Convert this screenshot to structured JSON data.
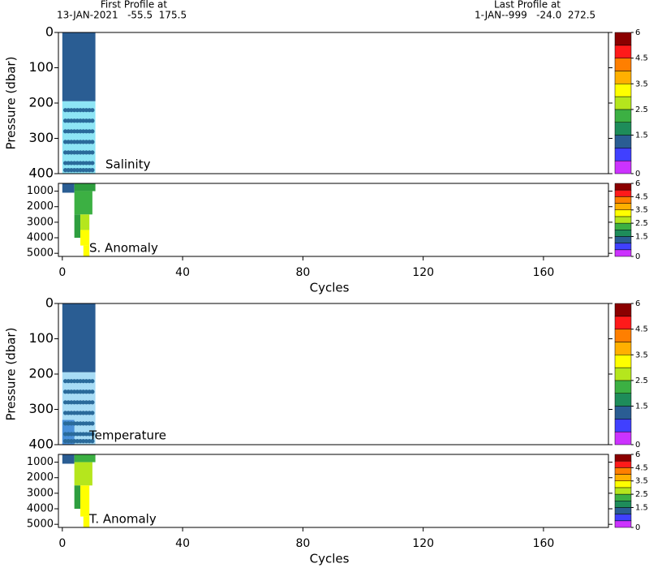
{
  "header": {
    "first_label": "First Profile at",
    "first_values": "13-JAN-2021   -55.5  175.5",
    "last_label": "Last Profile at",
    "last_values": "1-JAN--999   -24.0  272.5"
  },
  "chart_data": [
    {
      "type": "heatmap",
      "ylabel": "Pressure (dbar)",
      "label": "Salinity",
      "xlim": [
        -1.3,
        181.6
      ],
      "ylim": [
        0,
        400
      ],
      "yticks": [
        0,
        100,
        200,
        300,
        400
      ],
      "cells": [
        {
          "x": [
            0,
            11
          ],
          "y": [
            0,
            195
          ],
          "color": "#2a5d93"
        },
        {
          "x": [
            0,
            11
          ],
          "y": [
            195,
            400
          ],
          "color": "#8ee5f5"
        }
      ],
      "dot_rows": [
        220,
        250,
        280,
        310,
        340,
        370,
        390
      ],
      "dot_cycles": [
        1,
        2,
        3,
        4,
        5,
        6,
        7,
        8,
        9,
        10
      ],
      "colorbar": {
        "levels": [
          0,
          0.5,
          1,
          1.5,
          2,
          2.5,
          3,
          3.5,
          4,
          4.5,
          5,
          6
        ],
        "colors": [
          "#cc33ff",
          "#4040ff",
          "#2a5d93",
          "#1e8c5a",
          "#3cb043",
          "#b5e61d",
          "#ffff00",
          "#ffb000",
          "#ff7f00",
          "#ff1a1a",
          "#8b0000"
        ],
        "ticks": [
          0,
          1.5,
          2.5,
          3.5,
          4.5,
          6
        ]
      }
    },
    {
      "type": "heatmap",
      "label": "S. Anomaly",
      "xlabel": "Cycles",
      "xlim": [
        -1.3,
        181.6
      ],
      "xticks": [
        0,
        40,
        80,
        120,
        160
      ],
      "ylim": [
        500,
        5200
      ],
      "yticks": [
        1000,
        2000,
        3000,
        4000,
        5000
      ],
      "cells": [
        {
          "x": [
            0,
            4
          ],
          "y": [
            500,
            1100
          ],
          "color": "#2a5d93"
        },
        {
          "x": [
            4,
            11
          ],
          "y": [
            500,
            1000
          ],
          "color": "#2e9e3e"
        },
        {
          "x": [
            4,
            10
          ],
          "y": [
            1000,
            2500
          ],
          "color": "#3cb043"
        },
        {
          "x": [
            4,
            6
          ],
          "y": [
            2500,
            4000
          ],
          "color": "#2e9e3e"
        },
        {
          "x": [
            6,
            9
          ],
          "y": [
            2500,
            3500
          ],
          "color": "#b5e61d"
        },
        {
          "x": [
            6,
            9
          ],
          "y": [
            3500,
            4500
          ],
          "color": "#ffff00"
        },
        {
          "x": [
            7,
            9
          ],
          "y": [
            4500,
            5200
          ],
          "color": "#ffff00"
        }
      ],
      "colorbar": {
        "levels": [
          0,
          0.5,
          1,
          1.5,
          2,
          2.5,
          3,
          3.5,
          4,
          4.5,
          5,
          6
        ],
        "colors": [
          "#cc33ff",
          "#4040ff",
          "#2a5d93",
          "#1e8c5a",
          "#3cb043",
          "#b5e61d",
          "#ffff00",
          "#ffb000",
          "#ff7f00",
          "#ff1a1a",
          "#8b0000"
        ],
        "ticks": [
          0,
          1.5,
          2.5,
          3.5,
          4.5,
          6
        ]
      }
    },
    {
      "type": "heatmap",
      "ylabel": "Pressure (dbar)",
      "label": "Temperature",
      "xlim": [
        -1.3,
        181.6
      ],
      "ylim": [
        0,
        400
      ],
      "yticks": [
        0,
        100,
        200,
        300,
        400
      ],
      "cells": [
        {
          "x": [
            0,
            11
          ],
          "y": [
            0,
            195
          ],
          "color": "#2a5d93"
        },
        {
          "x": [
            0,
            11
          ],
          "y": [
            195,
            400
          ],
          "color": "#a8dcf5"
        },
        {
          "x": [
            0,
            4
          ],
          "y": [
            330,
            400
          ],
          "color": "#4a90d9"
        }
      ],
      "dot_rows": [
        220,
        250,
        280,
        310,
        340,
        370,
        390
      ],
      "dot_cycles": [
        1,
        2,
        3,
        4,
        5,
        6,
        7,
        8,
        9,
        10
      ],
      "colorbar": {
        "levels": [
          0,
          0.5,
          1,
          1.5,
          2,
          2.5,
          3,
          3.5,
          4,
          4.5,
          5,
          6
        ],
        "colors": [
          "#cc33ff",
          "#4040ff",
          "#2a5d93",
          "#1e8c5a",
          "#3cb043",
          "#b5e61d",
          "#ffff00",
          "#ffb000",
          "#ff7f00",
          "#ff1a1a",
          "#8b0000"
        ],
        "ticks": [
          0,
          1.5,
          2.5,
          3.5,
          4.5,
          6
        ]
      }
    },
    {
      "type": "heatmap",
      "label": "T. Anomaly",
      "xlabel": "Cycles",
      "xlim": [
        -1.3,
        181.6
      ],
      "xticks": [
        0,
        40,
        80,
        120,
        160
      ],
      "ylim": [
        500,
        5200
      ],
      "yticks": [
        1000,
        2000,
        3000,
        4000,
        5000
      ],
      "cells": [
        {
          "x": [
            0,
            4
          ],
          "y": [
            500,
            1100
          ],
          "color": "#2a5d93"
        },
        {
          "x": [
            4,
            11
          ],
          "y": [
            500,
            1000
          ],
          "color": "#3cb043"
        },
        {
          "x": [
            4,
            10
          ],
          "y": [
            1000,
            2500
          ],
          "color": "#b5e61d"
        },
        {
          "x": [
            4,
            6
          ],
          "y": [
            2500,
            4000
          ],
          "color": "#2e9e3e"
        },
        {
          "x": [
            6,
            9
          ],
          "y": [
            2500,
            4500
          ],
          "color": "#ffff00"
        },
        {
          "x": [
            7,
            9
          ],
          "y": [
            4500,
            5200
          ],
          "color": "#ffff00"
        }
      ],
      "colorbar": {
        "levels": [
          0,
          0.5,
          1,
          1.5,
          2,
          2.5,
          3,
          3.5,
          4,
          4.5,
          5,
          6
        ],
        "colors": [
          "#cc33ff",
          "#4040ff",
          "#2a5d93",
          "#1e8c5a",
          "#3cb043",
          "#b5e61d",
          "#ffff00",
          "#ffb000",
          "#ff7f00",
          "#ff1a1a",
          "#8b0000"
        ],
        "ticks": [
          0,
          1.5,
          2.5,
          3.5,
          4.5,
          6
        ]
      }
    }
  ]
}
